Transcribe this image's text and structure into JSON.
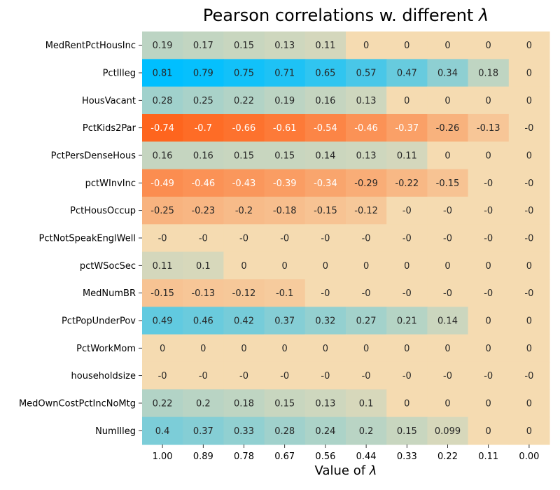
{
  "chart_data": {
    "type": "heatmap",
    "title_prefix": "Pearson correlations w. different ",
    "title_symbol": "λ",
    "xlabel_prefix": "Value of ",
    "xlabel_symbol": "λ",
    "ylabel": "",
    "x_categories": [
      "1.00",
      "0.89",
      "0.78",
      "0.67",
      "0.56",
      "0.44",
      "0.33",
      "0.22",
      "0.11",
      "0.00"
    ],
    "y_categories": [
      "MedRentPctHousInc",
      "PctIlleg",
      "HousVacant",
      "PctKids2Par",
      "PctPersDenseHous",
      "pctWInvInc",
      "PctHousOccup",
      "PctNotSpeakEnglWell",
      "pctWSocSec",
      "MedNumBR",
      "PctPopUnderPov",
      "PctWorkMom",
      "householdsize",
      "MedOwnCostPctIncNoMtg",
      "NumIlleg"
    ],
    "values": [
      [
        0.19,
        0.17,
        0.15,
        0.13,
        0.11,
        0,
        0,
        0,
        0,
        0
      ],
      [
        0.81,
        0.79,
        0.75,
        0.71,
        0.65,
        0.57,
        0.47,
        0.34,
        0.18,
        0
      ],
      [
        0.28,
        0.25,
        0.22,
        0.19,
        0.16,
        0.13,
        0,
        0,
        0,
        0
      ],
      [
        -0.74,
        -0.7,
        -0.66,
        -0.61,
        -0.54,
        -0.46,
        -0.37,
        -0.26,
        -0.13,
        0
      ],
      [
        0.16,
        0.16,
        0.15,
        0.15,
        0.14,
        0.13,
        0.11,
        0,
        0,
        0
      ],
      [
        -0.49,
        -0.46,
        -0.43,
        -0.39,
        -0.34,
        -0.29,
        -0.22,
        -0.15,
        0,
        0
      ],
      [
        -0.25,
        -0.23,
        -0.2,
        -0.18,
        -0.15,
        -0.12,
        0,
        0,
        0,
        0
      ],
      [
        0,
        0,
        0,
        0,
        0,
        0,
        0,
        0,
        0,
        0
      ],
      [
        0.11,
        0.1,
        0,
        0,
        0,
        0,
        0,
        0,
        0,
        0
      ],
      [
        -0.15,
        -0.13,
        -0.12,
        -0.1,
        0,
        0,
        0,
        0,
        0,
        0
      ],
      [
        0.49,
        0.46,
        0.42,
        0.37,
        0.32,
        0.27,
        0.21,
        0.14,
        0,
        0
      ],
      [
        0,
        0,
        0,
        0,
        0,
        0,
        0,
        0,
        0,
        0
      ],
      [
        0,
        0,
        0,
        0,
        0,
        0,
        0,
        0,
        0,
        0
      ],
      [
        0.22,
        0.2,
        0.18,
        0.15,
        0.13,
        0.1,
        0,
        0,
        0,
        0
      ],
      [
        0.4,
        0.37,
        0.33,
        0.28,
        0.24,
        0.2,
        0.15,
        0.099,
        0,
        0
      ]
    ],
    "color_scale": {
      "negative_extreme": "#ff5a10",
      "zero": "#f5dbb1",
      "positive_extreme": "#00bfff",
      "value_limit": 0.81
    },
    "legend": "none",
    "grid": false
  }
}
